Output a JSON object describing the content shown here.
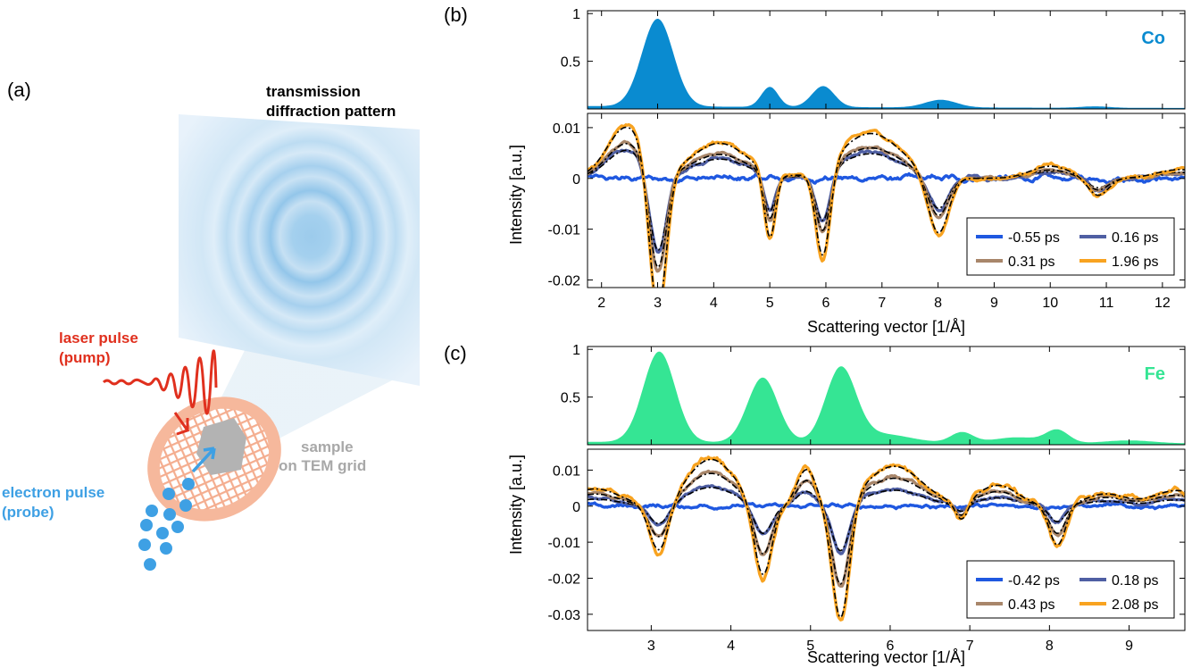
{
  "panel_labels": {
    "a": "(a)",
    "b": "(b)",
    "c": "(c)"
  },
  "schematic": {
    "detector_label": [
      "transmission",
      "diffraction pattern"
    ],
    "laser_label": [
      "laser pulse",
      "(pump)"
    ],
    "electron_label": [
      "electron pulse",
      "(probe)"
    ],
    "sample_label": [
      "sample",
      "on TEM grid"
    ],
    "colors": {
      "laser": "#e0301e",
      "electron": "#3ea0e4",
      "sample": "#a8a8a8",
      "grid": "#f3a584"
    }
  },
  "chart_data": [
    {
      "id": "b",
      "type": "area+line",
      "element_label": "Co",
      "element_color": "#0a8bd0",
      "xlabel": "Scattering vector [1/Å]",
      "ylabel": "Intensity [a.u.]",
      "xlim": [
        1.75,
        12.4
      ],
      "xticks": [
        2,
        3,
        4,
        5,
        6,
        7,
        8,
        9,
        10,
        11,
        12
      ],
      "top": {
        "ylim": [
          0,
          1.03
        ],
        "yticks": [
          0.5,
          1
        ],
        "ytick_labels": [
          "0.5",
          "1"
        ],
        "baseline": 0.03,
        "peaks": [
          {
            "x": 3.0,
            "height": 0.92,
            "width": 0.28
          },
          {
            "x": 5.0,
            "height": 0.21,
            "width": 0.15
          },
          {
            "x": 5.95,
            "height": 0.22,
            "width": 0.2
          },
          {
            "x": 8.05,
            "height": 0.08,
            "width": 0.28
          },
          {
            "x": 10.8,
            "height": 0.015,
            "width": 0.25
          }
        ]
      },
      "bottom": {
        "ylim": [
          -0.0215,
          0.0128
        ],
        "yticks": [
          -0.02,
          -0.01,
          0,
          0.01
        ],
        "ytick_labels": [
          "-0.02",
          "-0.01",
          "0",
          "0.01"
        ],
        "features": [
          {
            "x": 2.45,
            "amp": 0.0105,
            "width": 0.35
          },
          {
            "x": 3.0,
            "amp": -0.0305,
            "width": 0.15
          },
          {
            "x": 4.1,
            "amp": 0.0072,
            "width": 0.5
          },
          {
            "x": 5.0,
            "amp": -0.0135,
            "width": 0.1
          },
          {
            "x": 5.95,
            "amp": -0.0185,
            "width": 0.13
          },
          {
            "x": 6.8,
            "amp": 0.0092,
            "width": 0.55
          },
          {
            "x": 8.0,
            "amp": -0.012,
            "width": 0.18
          },
          {
            "x": 10.0,
            "amp": 0.0025,
            "width": 0.35
          },
          {
            "x": 10.85,
            "amp": -0.0036,
            "width": 0.18
          },
          {
            "x": 12.3,
            "amp": 0.0018,
            "width": 0.4
          }
        ],
        "series": [
          {
            "name": "-0.55 ps",
            "color": "#1f58e0",
            "scale": 0.0,
            "noise": 0.0009
          },
          {
            "name": "0.16 ps",
            "color": "#4f5fa3",
            "scale": 0.55,
            "noise": 0.0006
          },
          {
            "name": "0.31 ps",
            "color": "#a8866a",
            "scale": 0.68,
            "noise": 0.0005
          },
          {
            "name": "1.96 ps",
            "color": "#f8a320",
            "scale": 1.0,
            "noise": 0.0006
          }
        ],
        "fit_color": "#000000"
      }
    },
    {
      "id": "c",
      "type": "area+line",
      "element_label": "Fe",
      "element_color": "#35e594",
      "xlabel": "Scattering vector [1/Å]",
      "ylabel": "Intensity [a.u.]",
      "xlim": [
        2.2,
        9.7
      ],
      "xticks": [
        3,
        4,
        5,
        6,
        7,
        8,
        9
      ],
      "top": {
        "ylim": [
          0,
          1.03
        ],
        "yticks": [
          0.5,
          1
        ],
        "ytick_labels": [
          "0.5",
          "1"
        ],
        "baseline": 0.03,
        "peaks": [
          {
            "x": 3.1,
            "height": 0.95,
            "width": 0.2
          },
          {
            "x": 4.4,
            "height": 0.68,
            "width": 0.19
          },
          {
            "x": 5.38,
            "height": 0.77,
            "width": 0.19
          },
          {
            "x": 5.9,
            "height": 0.09,
            "width": 0.35
          },
          {
            "x": 6.9,
            "height": 0.11,
            "width": 0.14
          },
          {
            "x": 7.6,
            "height": 0.06,
            "width": 0.3
          },
          {
            "x": 8.1,
            "height": 0.13,
            "width": 0.14
          },
          {
            "x": 9.0,
            "height": 0.03,
            "width": 0.3
          }
        ]
      },
      "bottom": {
        "ylim": [
          -0.0345,
          0.0158
        ],
        "yticks": [
          -0.03,
          -0.02,
          -0.01,
          0,
          0.01
        ],
        "ytick_labels": [
          "-0.03",
          "-0.02",
          "-0.01",
          "0",
          "0.01"
        ],
        "features": [
          {
            "x": 2.3,
            "amp": 0.005,
            "width": 0.3
          },
          {
            "x": 3.1,
            "amp": -0.014,
            "width": 0.12
          },
          {
            "x": 3.75,
            "amp": 0.0135,
            "width": 0.3
          },
          {
            "x": 4.4,
            "amp": -0.021,
            "width": 0.11
          },
          {
            "x": 4.95,
            "amp": 0.0105,
            "width": 0.12
          },
          {
            "x": 5.38,
            "amp": -0.034,
            "width": 0.11
          },
          {
            "x": 6.05,
            "amp": 0.0115,
            "width": 0.35
          },
          {
            "x": 6.9,
            "amp": -0.0055,
            "width": 0.08
          },
          {
            "x": 7.35,
            "amp": 0.006,
            "width": 0.25
          },
          {
            "x": 8.1,
            "amp": -0.0115,
            "width": 0.1
          },
          {
            "x": 8.7,
            "amp": 0.0035,
            "width": 0.25
          },
          {
            "x": 9.6,
            "amp": 0.0045,
            "width": 0.3
          }
        ],
        "series": [
          {
            "name": "-0.42 ps",
            "color": "#1f58e0",
            "scale": 0.0,
            "noise": 0.0009
          },
          {
            "name": "0.18 ps",
            "color": "#4f5fa3",
            "scale": 0.4,
            "noise": 0.0007
          },
          {
            "name": "0.43 ps",
            "color": "#a8866a",
            "scale": 0.7,
            "noise": 0.0008
          },
          {
            "name": "2.08 ps",
            "color": "#f8a320",
            "scale": 1.0,
            "noise": 0.0012
          }
        ],
        "fit_color": "#000000"
      }
    }
  ]
}
